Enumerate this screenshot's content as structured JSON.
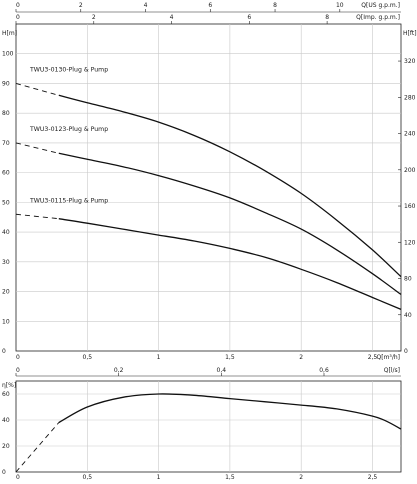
{
  "chart_data": [
    {
      "type": "line",
      "x_top_us": {
        "label": "Q[US g.p.m.]",
        "ticks": [
          "0",
          "2",
          "4",
          "6",
          "8",
          "10"
        ],
        "range": [
          0,
          11.89
        ]
      },
      "x_top_imp": {
        "label": "Q[Imp. g.p.m.]",
        "ticks": [
          "0",
          "2",
          "4",
          "6",
          "8"
        ],
        "range": [
          0,
          9.9
        ]
      },
      "x_bottom_m3h": {
        "label": "Q[m³/h]",
        "ticks": [
          "0",
          "0,5",
          "1",
          "1,5",
          "2",
          "2,5"
        ],
        "range": [
          0,
          2.7
        ]
      },
      "x_bottom_ls": {
        "label": "Q[l/s]",
        "ticks": [
          "0",
          "0,2",
          "0,4",
          "0,6"
        ],
        "range": [
          0,
          0.75
        ]
      },
      "y_left": {
        "label": "H[m]",
        "ticks": [
          "0",
          "10",
          "20",
          "30",
          "40",
          "50",
          "60",
          "70",
          "80",
          "90",
          "100"
        ],
        "range": [
          0,
          110
        ]
      },
      "y_right": {
        "label": "H[ft]",
        "ticks": [
          "0",
          "40",
          "80",
          "120",
          "160",
          "200",
          "240",
          "280",
          "320"
        ],
        "range": [
          0,
          360.9
        ]
      },
      "grid": true,
      "series": [
        {
          "name": "TWU3-0130-Plug & Pump",
          "x": [
            0.3,
            0.5,
            0.75,
            1.0,
            1.25,
            1.5,
            1.75,
            2.0,
            2.25,
            2.5,
            2.7
          ],
          "y": [
            86,
            83.5,
            80.5,
            77,
            72.5,
            67,
            60.5,
            53,
            44,
            34,
            25
          ],
          "dashed_from_zero": [
            0,
            90
          ]
        },
        {
          "name": "TWU3-0123-Plug & Pump",
          "x": [
            0.3,
            0.5,
            0.75,
            1.0,
            1.25,
            1.5,
            1.75,
            2.0,
            2.25,
            2.5,
            2.7
          ],
          "y": [
            66.5,
            64.5,
            62,
            59,
            55.5,
            51.5,
            46.5,
            41,
            34,
            26,
            19
          ],
          "dashed_from_zero": [
            0,
            70
          ]
        },
        {
          "name": "TWU3-0115-Plug & Pump",
          "x": [
            0.3,
            0.5,
            0.75,
            1.0,
            1.25,
            1.5,
            1.75,
            2.0,
            2.25,
            2.5,
            2.7
          ],
          "y": [
            44.5,
            43,
            41,
            39,
            37,
            34.5,
            31.5,
            27.5,
            23,
            18,
            14
          ],
          "dashed_from_zero": [
            0,
            46
          ]
        }
      ]
    },
    {
      "type": "line",
      "x_bottom_m3h": {
        "ticks": [
          "0",
          "0,5",
          "1",
          "1,5",
          "2",
          "2,5"
        ],
        "range": [
          0,
          2.7
        ]
      },
      "y_left": {
        "label": "η[%]",
        "ticks": [
          "0",
          "20",
          "40",
          "60"
        ],
        "range": [
          0,
          70
        ]
      },
      "grid": true,
      "series": [
        {
          "x": [
            0.3,
            0.5,
            0.75,
            1.0,
            1.25,
            1.5,
            1.75,
            2.0,
            2.25,
            2.5,
            2.6,
            2.7
          ],
          "y": [
            38,
            50,
            57.5,
            60,
            59,
            56.5,
            54,
            51.5,
            48.5,
            43,
            39,
            33
          ],
          "dashed_segment": {
            "x": [
              0,
              0.3
            ],
            "y": [
              0,
              38
            ]
          }
        }
      ]
    }
  ]
}
